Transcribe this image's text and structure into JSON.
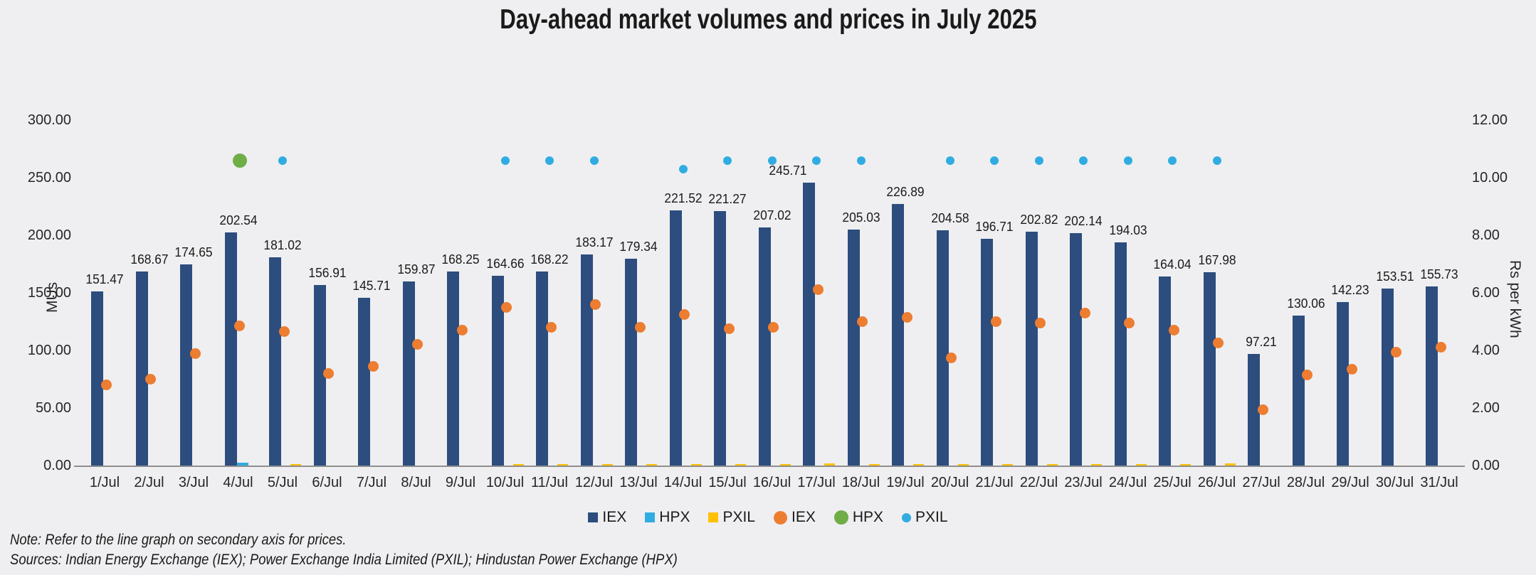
{
  "title": "Day-ahead market volumes and prices in July 2025",
  "note": "Note: Refer to the line graph on secondary axis for prices.",
  "sources": "Sources: Indian Energy Exchange (IEX); Power Exchange India Limited (PXIL); Hindustan Power Exchange (HPX)",
  "left_axis": {
    "title": "MUs",
    "ticks": [
      "300.00",
      "250.00",
      "200.00",
      "150.00",
      "100.00",
      "50.00",
      "0.00"
    ],
    "min": 0,
    "max": 300,
    "step": 50
  },
  "right_axis": {
    "title": "Rs per kWh",
    "ticks": [
      "12.00",
      "10.00",
      "8.00",
      "6.00",
      "4.00",
      "2.00",
      "0.00"
    ],
    "min": 0,
    "max": 12,
    "step": 2
  },
  "colors": {
    "background": "#efeff1",
    "iex_bar": "#2c4d7e",
    "hpx_bar": "#31ace2",
    "pxil_bar": "#ffc000",
    "iex_price_dot": "#ed7d31",
    "hpx_price_dot": "#6fad47",
    "pxil_price_dot": "#31ace2",
    "axis_line": "#8f8f8f",
    "text": "#1f1f1f"
  },
  "legend": [
    {
      "label": "IEX",
      "marker": "square",
      "color": "#2c4d7e",
      "size": 14
    },
    {
      "label": "HPX",
      "marker": "square",
      "color": "#31ace2",
      "size": 14
    },
    {
      "label": "PXIL",
      "marker": "square",
      "color": "#ffc000",
      "size": 14
    },
    {
      "label": "IEX",
      "marker": "circle",
      "color": "#ed7d31",
      "size": 19
    },
    {
      "label": "HPX",
      "marker": "circle",
      "color": "#6fad47",
      "size": 20
    },
    {
      "label": "PXIL",
      "marker": "circle",
      "color": "#31ace2",
      "size": 13
    }
  ],
  "chart_data": {
    "type": "bar",
    "subtype": "combo bar + scatter, dual axis",
    "title": "Day-ahead market volumes and prices in July 2025",
    "xlabel": "",
    "ylabel_left": "MUs",
    "ylabel_right": "Rs per kWh",
    "ylim_left": [
      0,
      300
    ],
    "ylim_right": [
      0,
      12
    ],
    "grid": false,
    "legend_position": "bottom",
    "categories": [
      "1/Jul",
      "2/Jul",
      "3/Jul",
      "4/Jul",
      "5/Jul",
      "6/Jul",
      "7/Jul",
      "8/Jul",
      "9/Jul",
      "10/Jul",
      "11/Jul",
      "12/Jul",
      "13/Jul",
      "14/Jul",
      "15/Jul",
      "16/Jul",
      "17/Jul",
      "18/Jul",
      "19/Jul",
      "20/Jul",
      "21/Jul",
      "22/Jul",
      "23/Jul",
      "24/Jul",
      "25/Jul",
      "26/Jul",
      "27/Jul",
      "28/Jul",
      "29/Jul",
      "30/Jul",
      "31/Jul"
    ],
    "series": [
      {
        "name": "IEX",
        "role": "volume-bar",
        "axis": "left",
        "unit": "MUs",
        "labeled": true,
        "values": [
          151.47,
          168.67,
          174.65,
          202.54,
          181.02,
          156.91,
          145.71,
          159.87,
          168.25,
          164.66,
          168.22,
          183.17,
          179.34,
          221.52,
          221.27,
          207.02,
          245.71,
          205.03,
          226.89,
          204.58,
          196.71,
          202.82,
          202.14,
          194.03,
          164.04,
          167.98,
          97.21,
          130.06,
          142.23,
          153.51,
          155.73
        ]
      },
      {
        "name": "HPX",
        "role": "volume-bar",
        "axis": "left",
        "unit": "MUs",
        "labeled": false,
        "values": [
          0,
          0,
          0,
          2.5,
          0,
          0,
          0,
          0,
          0,
          0,
          0,
          0,
          0,
          0,
          0,
          0,
          0,
          0,
          0,
          0,
          0,
          0,
          0,
          0,
          0,
          0,
          0,
          0,
          0,
          0,
          0
        ]
      },
      {
        "name": "PXIL",
        "role": "volume-bar",
        "axis": "left",
        "unit": "MUs",
        "labeled": false,
        "values": [
          0,
          0,
          0,
          0,
          1,
          0,
          0,
          0,
          0,
          1.5,
          1,
          1,
          1,
          1,
          1,
          1.5,
          2,
          1,
          1,
          1.5,
          1,
          1,
          1,
          1,
          1,
          2,
          0,
          0,
          0,
          0,
          0
        ]
      },
      {
        "name": "IEX",
        "role": "price-dot",
        "axis": "right",
        "unit": "Rs per kWh",
        "estimated": true,
        "values": [
          2.8,
          3.0,
          3.9,
          4.85,
          4.65,
          3.2,
          3.45,
          4.2,
          4.7,
          5.5,
          4.8,
          5.6,
          4.8,
          5.25,
          4.75,
          4.8,
          6.1,
          5.0,
          5.15,
          3.75,
          5.0,
          4.95,
          5.3,
          4.95,
          4.7,
          4.25,
          1.95,
          3.15,
          3.35,
          3.95,
          4.1
        ]
      },
      {
        "name": "HPX",
        "role": "price-dot",
        "axis": "right",
        "unit": "Rs per kWh",
        "estimated": true,
        "values": [
          null,
          null,
          null,
          10.6,
          null,
          null,
          null,
          null,
          null,
          null,
          null,
          null,
          null,
          null,
          null,
          null,
          null,
          null,
          null,
          null,
          null,
          null,
          null,
          null,
          null,
          null,
          null,
          null,
          null,
          null,
          null
        ]
      },
      {
        "name": "PXIL",
        "role": "price-dot",
        "axis": "right",
        "unit": "Rs per kWh",
        "estimated": true,
        "values": [
          null,
          null,
          null,
          null,
          10.6,
          null,
          null,
          null,
          null,
          10.6,
          10.6,
          10.6,
          null,
          10.3,
          10.6,
          10.6,
          10.6,
          10.6,
          null,
          10.6,
          10.6,
          10.6,
          10.6,
          10.6,
          10.6,
          10.6,
          null,
          null,
          null,
          null,
          null
        ]
      }
    ]
  }
}
